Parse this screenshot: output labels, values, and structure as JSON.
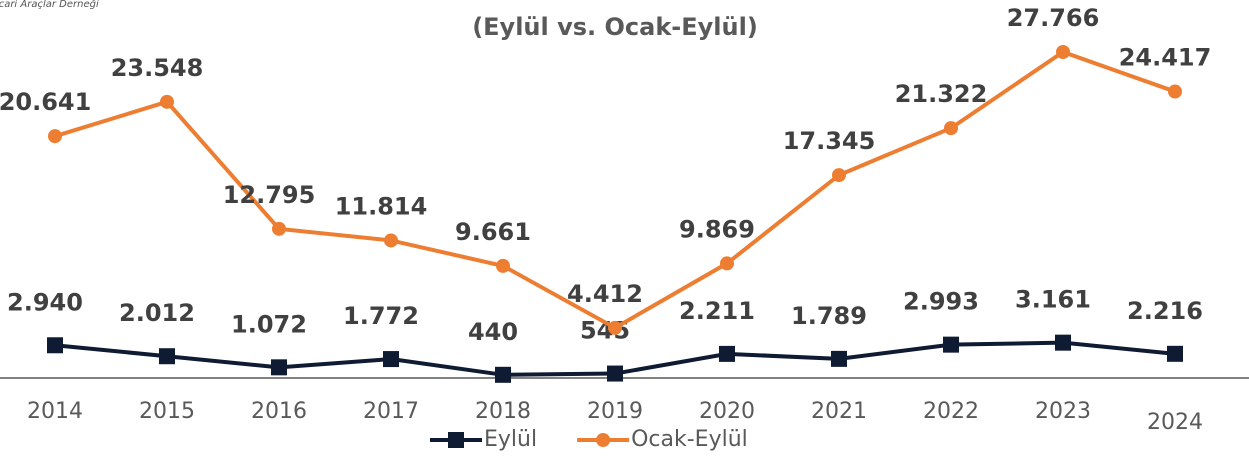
{
  "chart_data": {
    "type": "line",
    "source": "ticari Araçlar Derneği",
    "subtitle": "(Eylül  vs. Ocak-Eylül)",
    "categories": [
      "2014",
      "2015",
      "2016",
      "2017",
      "2018",
      "2019",
      "2020",
      "2021",
      "2022",
      "2023",
      "2024"
    ],
    "series": [
      {
        "name": "Eylül",
        "color": "#0f1a33",
        "marker": "square",
        "values": [
          2940,
          2012,
          1072,
          1772,
          440,
          545,
          2211,
          1789,
          2993,
          3161,
          2216
        ],
        "value_labels": [
          "2.940",
          "2.012",
          "1.072",
          "1.772",
          "440",
          "545",
          "2.211",
          "1.789",
          "2.993",
          "3.161",
          "2.216"
        ]
      },
      {
        "name": "Ocak-Eylül",
        "color": "#ed7d31",
        "marker": "circle",
        "values": [
          20641,
          23548,
          12795,
          11814,
          9661,
          4412,
          9869,
          17345,
          21322,
          27766,
          24417
        ],
        "value_labels": [
          "20.641",
          "23.548",
          "12.795",
          "11.814",
          "9.661",
          "4.412",
          "9.869",
          "17.345",
          "21.322",
          "27.766",
          "24.417"
        ]
      }
    ],
    "legend": "bottom"
  }
}
